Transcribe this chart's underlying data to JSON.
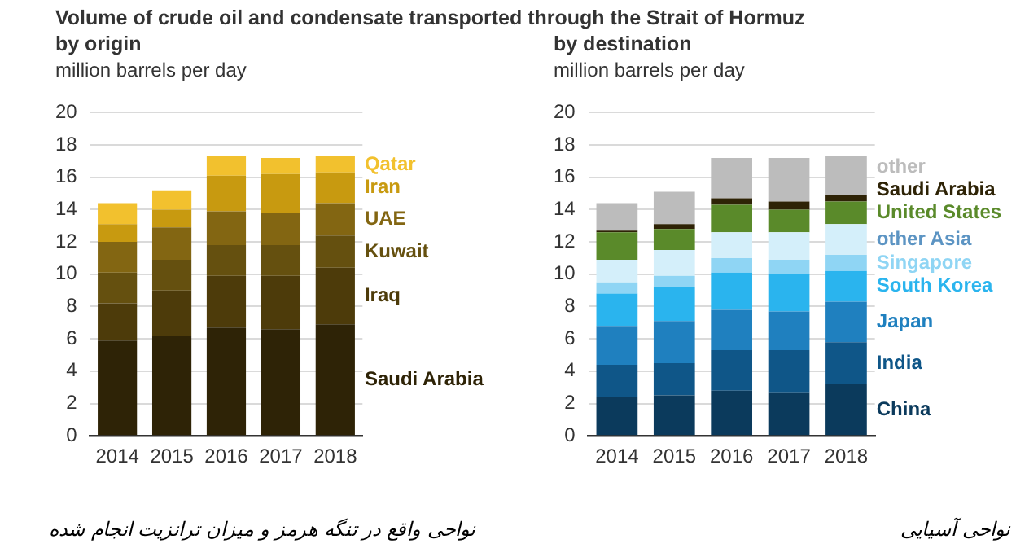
{
  "chart_data": [
    {
      "type": "bar",
      "title": "Volume of crude oil and condensate transported through the Strait of Hormuz",
      "subtitle": "by origin",
      "ylabel": "million barrels per day",
      "categories": [
        "2014",
        "2015",
        "2016",
        "2017",
        "2018"
      ],
      "stacked": true,
      "grid": "y",
      "legend": false,
      "ylim": [
        0,
        20
      ],
      "yticks": [
        0,
        2,
        4,
        6,
        8,
        10,
        12,
        14,
        16,
        18,
        20
      ],
      "series": [
        {
          "name": "Saudi Arabia",
          "color": "#2e2306",
          "values": [
            5.9,
            6.2,
            6.7,
            6.6,
            6.9
          ]
        },
        {
          "name": "Iraq",
          "color": "#4d3b0a",
          "values": [
            2.3,
            2.8,
            3.2,
            3.3,
            3.5
          ]
        },
        {
          "name": "Kuwait",
          "color": "#65500f",
          "values": [
            1.9,
            1.9,
            1.9,
            1.9,
            2.0
          ]
        },
        {
          "name": "UAE",
          "color": "#836612",
          "values": [
            1.9,
            2.0,
            2.1,
            2.0,
            2.0
          ]
        },
        {
          "name": "Iran",
          "color": "#c89a10",
          "values": [
            1.1,
            1.1,
            2.2,
            2.4,
            1.9
          ]
        },
        {
          "name": "Qatar",
          "color": "#f2c12e",
          "values": [
            1.3,
            1.2,
            1.2,
            1.0,
            1.0
          ]
        }
      ],
      "annotations": [
        "نواحی واقع در تنگه هرمز و میزان ترانزیت انجام شده"
      ]
    },
    {
      "type": "bar",
      "subtitle": "by destination",
      "ylabel": "million barrels per day",
      "categories": [
        "2014",
        "2015",
        "2016",
        "2017",
        "2018"
      ],
      "stacked": true,
      "grid": "y",
      "legend": false,
      "ylim": [
        0,
        20
      ],
      "yticks": [
        0,
        2,
        4,
        6,
        8,
        10,
        12,
        14,
        16,
        18,
        20
      ],
      "series": [
        {
          "name": "China",
          "color": "#0b3a5c",
          "values": [
            2.4,
            2.5,
            2.8,
            2.7,
            3.2
          ]
        },
        {
          "name": "India",
          "color": "#0f5688",
          "values": [
            2.0,
            2.0,
            2.5,
            2.6,
            2.6
          ]
        },
        {
          "name": "Japan",
          "color": "#1f80bf",
          "values": [
            2.4,
            2.6,
            2.5,
            2.4,
            2.5
          ]
        },
        {
          "name": "South Korea",
          "color": "#2ab4ee",
          "values": [
            2.0,
            2.1,
            2.3,
            2.3,
            1.9
          ]
        },
        {
          "name": "Singapore",
          "color": "#8fd5f4",
          "values": [
            0.7,
            0.7,
            0.9,
            0.9,
            1.0
          ]
        },
        {
          "name": "other Asia",
          "color": "#d4effa",
          "values": [
            1.4,
            1.6,
            1.6,
            1.7,
            1.9
          ]
        },
        {
          "name": "United States",
          "color": "#5a8a2a",
          "values": [
            1.7,
            1.3,
            1.7,
            1.4,
            1.4
          ]
        },
        {
          "name": "Saudi Arabia",
          "color": "#2e2306",
          "values": [
            0.1,
            0.3,
            0.4,
            0.5,
            0.4
          ]
        },
        {
          "name": "other",
          "color": "#bcbcbc",
          "values": [
            1.7,
            2.0,
            2.5,
            2.7,
            2.4
          ]
        }
      ],
      "annotations": [
        "نواحی آسیایی"
      ]
    }
  ]
}
